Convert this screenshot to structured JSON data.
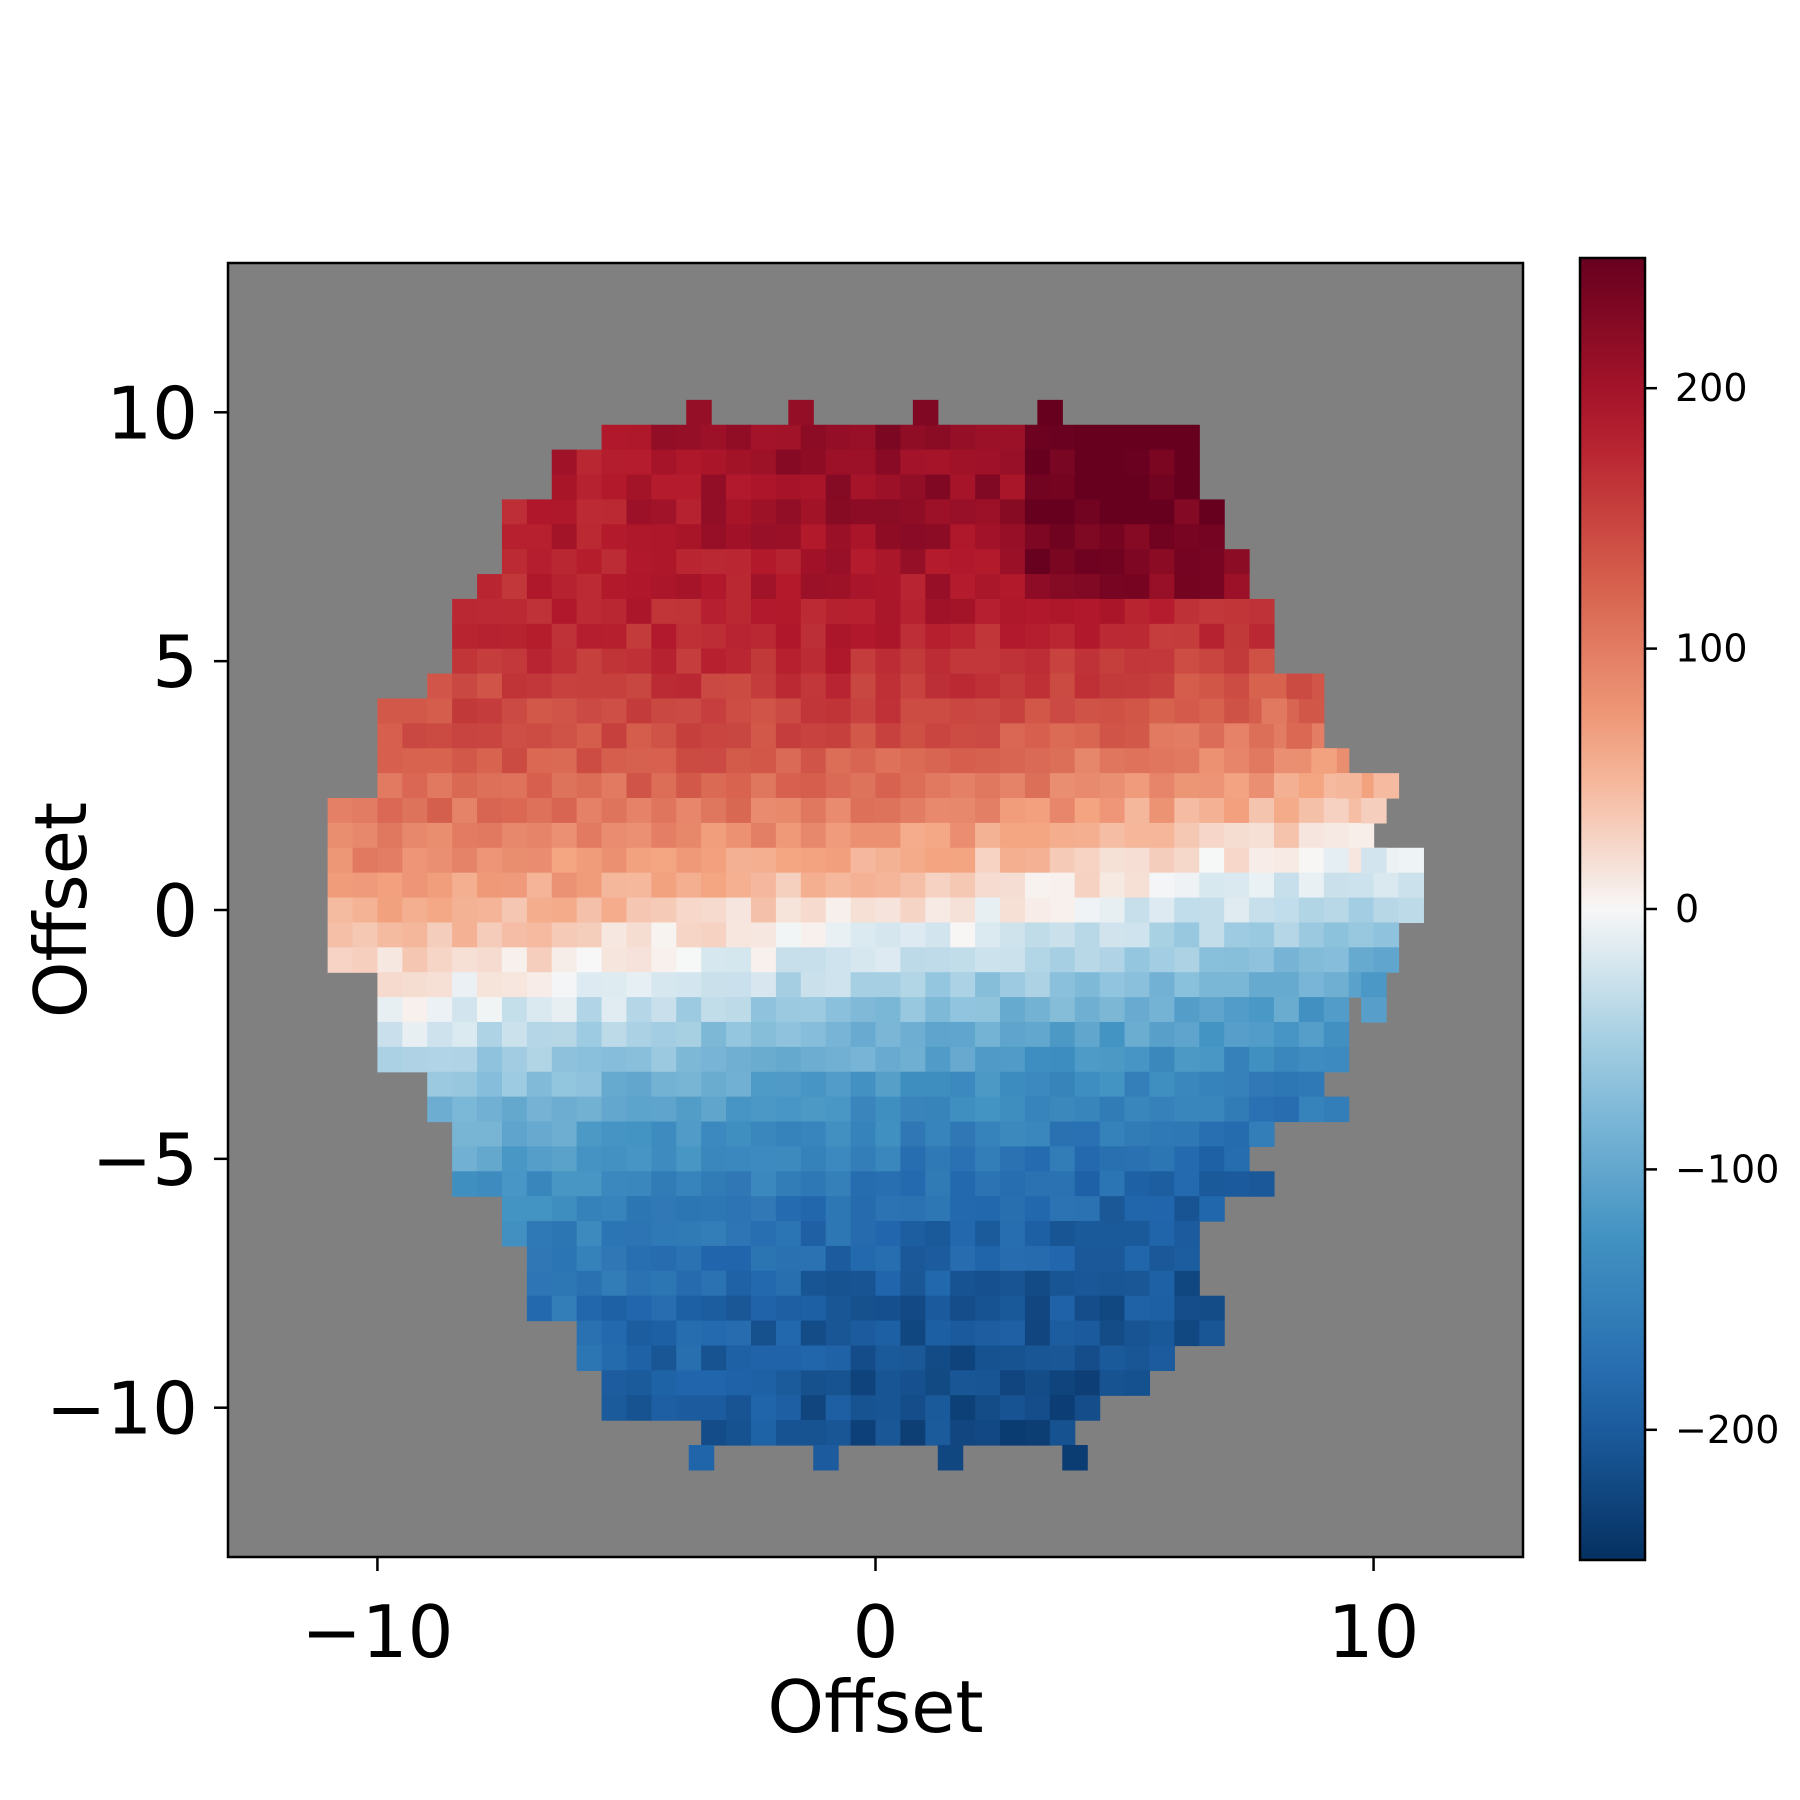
{
  "chart_data": {
    "type": "heatmap",
    "title": "",
    "xlabel": "Offset",
    "ylabel": "Offset",
    "xlim": [
      -13,
      13
    ],
    "ylim": [
      -13,
      13
    ],
    "xticks": [
      -10,
      0,
      10
    ],
    "yticks": [
      -10,
      -5,
      0,
      5,
      10
    ],
    "xtick_labels": [
      "−10",
      "0",
      "10"
    ],
    "ytick_labels": [
      "−10",
      "−5",
      "0",
      "5",
      "10"
    ],
    "background_color": "#808080",
    "grid": false,
    "colormap": "RdBu_r",
    "colorbar": {
      "vmin": -250,
      "vmax": 250,
      "ticks": [
        -200,
        -100,
        0,
        100,
        200
      ],
      "tick_labels": [
        "−200",
        "−100",
        "0",
        "100",
        "200"
      ],
      "placement": "right"
    },
    "cell_size": 0.5,
    "field_description": "velocity field: positive (red) in the upper half, negative (blue) in the lower half, zero line tilted; hexagon-like footprint about 22 units across",
    "shape": {
      "rows_y_center": [
        10.0,
        9.5,
        9.0,
        8.5,
        8.0,
        7.5,
        7.0,
        6.5,
        6.0,
        5.5,
        5.0,
        4.5,
        4.0,
        3.5,
        3.0,
        2.5,
        2.0,
        1.5,
        1.0,
        0.5,
        0.0,
        -0.5,
        -1.0,
        -1.5,
        -2.0,
        -2.5,
        -3.0,
        -3.5,
        -4.0,
        -4.5,
        -5.0,
        -5.5,
        -6.0,
        -6.5,
        -7.0,
        -7.5,
        -8.0,
        -8.5,
        -9.0,
        -9.5,
        -10.0,
        -10.5
      ]
    }
  }
}
